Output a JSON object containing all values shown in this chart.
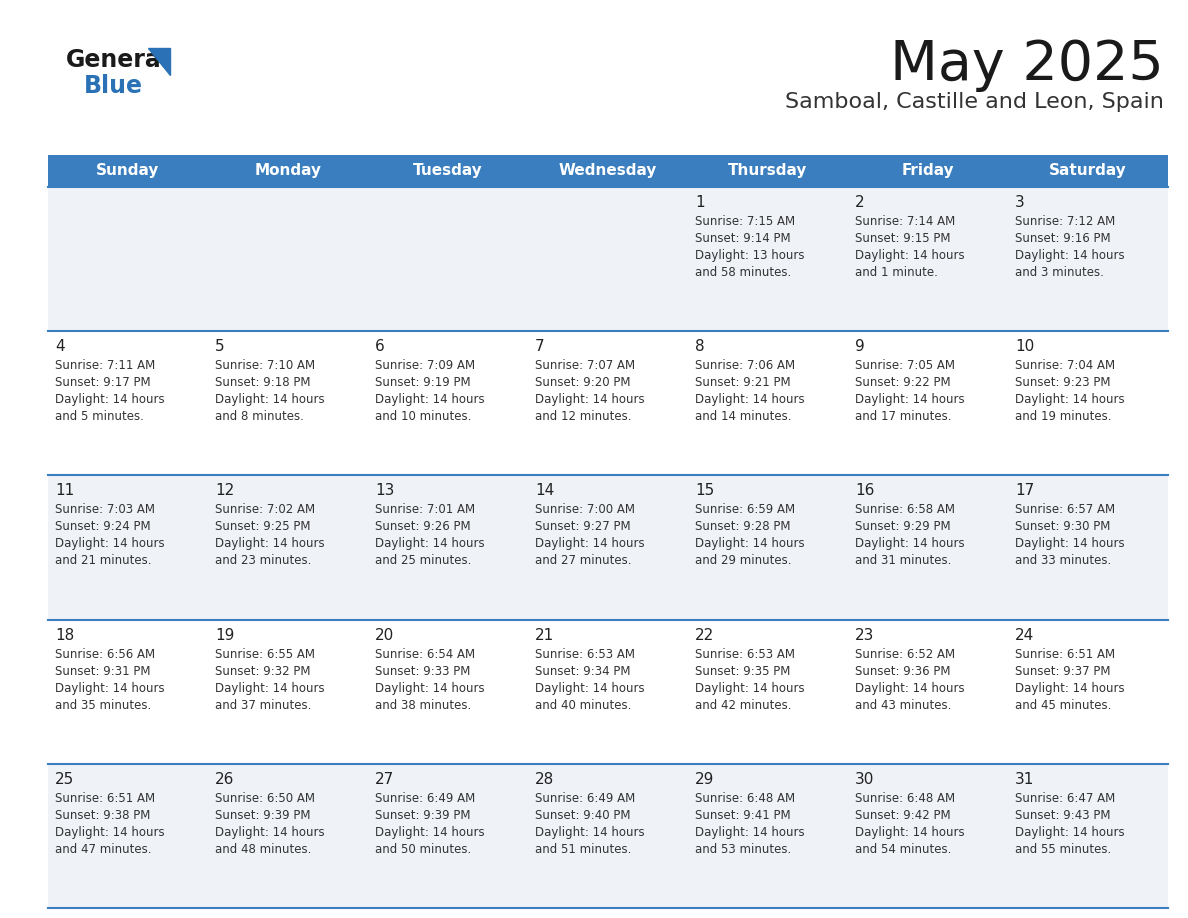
{
  "title": "May 2025",
  "subtitle": "Samboal, Castille and Leon, Spain",
  "days_of_week": [
    "Sunday",
    "Monday",
    "Tuesday",
    "Wednesday",
    "Thursday",
    "Friday",
    "Saturday"
  ],
  "header_bg": "#3a7ebf",
  "header_text": "#ffffff",
  "cell_bg_odd": "#eff3f8",
  "cell_bg_even": "#ffffff",
  "row_line_color": "#3a7ebf",
  "title_color": "#1a1a1a",
  "subtitle_color": "#333333",
  "day_num_color": "#222222",
  "cell_text_color": "#333333",
  "calendar_data": [
    [
      null,
      null,
      null,
      null,
      {
        "day": "1",
        "sunrise": "7:15 AM",
        "sunset": "9:14 PM",
        "daylight": "13 hours",
        "daylight2": "and 58 minutes."
      },
      {
        "day": "2",
        "sunrise": "7:14 AM",
        "sunset": "9:15 PM",
        "daylight": "14 hours",
        "daylight2": "and 1 minute."
      },
      {
        "day": "3",
        "sunrise": "7:12 AM",
        "sunset": "9:16 PM",
        "daylight": "14 hours",
        "daylight2": "and 3 minutes."
      }
    ],
    [
      {
        "day": "4",
        "sunrise": "7:11 AM",
        "sunset": "9:17 PM",
        "daylight": "14 hours",
        "daylight2": "and 5 minutes."
      },
      {
        "day": "5",
        "sunrise": "7:10 AM",
        "sunset": "9:18 PM",
        "daylight": "14 hours",
        "daylight2": "and 8 minutes."
      },
      {
        "day": "6",
        "sunrise": "7:09 AM",
        "sunset": "9:19 PM",
        "daylight": "14 hours",
        "daylight2": "and 10 minutes."
      },
      {
        "day": "7",
        "sunrise": "7:07 AM",
        "sunset": "9:20 PM",
        "daylight": "14 hours",
        "daylight2": "and 12 minutes."
      },
      {
        "day": "8",
        "sunrise": "7:06 AM",
        "sunset": "9:21 PM",
        "daylight": "14 hours",
        "daylight2": "and 14 minutes."
      },
      {
        "day": "9",
        "sunrise": "7:05 AM",
        "sunset": "9:22 PM",
        "daylight": "14 hours",
        "daylight2": "and 17 minutes."
      },
      {
        "day": "10",
        "sunrise": "7:04 AM",
        "sunset": "9:23 PM",
        "daylight": "14 hours",
        "daylight2": "and 19 minutes."
      }
    ],
    [
      {
        "day": "11",
        "sunrise": "7:03 AM",
        "sunset": "9:24 PM",
        "daylight": "14 hours",
        "daylight2": "and 21 minutes."
      },
      {
        "day": "12",
        "sunrise": "7:02 AM",
        "sunset": "9:25 PM",
        "daylight": "14 hours",
        "daylight2": "and 23 minutes."
      },
      {
        "day": "13",
        "sunrise": "7:01 AM",
        "sunset": "9:26 PM",
        "daylight": "14 hours",
        "daylight2": "and 25 minutes."
      },
      {
        "day": "14",
        "sunrise": "7:00 AM",
        "sunset": "9:27 PM",
        "daylight": "14 hours",
        "daylight2": "and 27 minutes."
      },
      {
        "day": "15",
        "sunrise": "6:59 AM",
        "sunset": "9:28 PM",
        "daylight": "14 hours",
        "daylight2": "and 29 minutes."
      },
      {
        "day": "16",
        "sunrise": "6:58 AM",
        "sunset": "9:29 PM",
        "daylight": "14 hours",
        "daylight2": "and 31 minutes."
      },
      {
        "day": "17",
        "sunrise": "6:57 AM",
        "sunset": "9:30 PM",
        "daylight": "14 hours",
        "daylight2": "and 33 minutes."
      }
    ],
    [
      {
        "day": "18",
        "sunrise": "6:56 AM",
        "sunset": "9:31 PM",
        "daylight": "14 hours",
        "daylight2": "and 35 minutes."
      },
      {
        "day": "19",
        "sunrise": "6:55 AM",
        "sunset": "9:32 PM",
        "daylight": "14 hours",
        "daylight2": "and 37 minutes."
      },
      {
        "day": "20",
        "sunrise": "6:54 AM",
        "sunset": "9:33 PM",
        "daylight": "14 hours",
        "daylight2": "and 38 minutes."
      },
      {
        "day": "21",
        "sunrise": "6:53 AM",
        "sunset": "9:34 PM",
        "daylight": "14 hours",
        "daylight2": "and 40 minutes."
      },
      {
        "day": "22",
        "sunrise": "6:53 AM",
        "sunset": "9:35 PM",
        "daylight": "14 hours",
        "daylight2": "and 42 minutes."
      },
      {
        "day": "23",
        "sunrise": "6:52 AM",
        "sunset": "9:36 PM",
        "daylight": "14 hours",
        "daylight2": "and 43 minutes."
      },
      {
        "day": "24",
        "sunrise": "6:51 AM",
        "sunset": "9:37 PM",
        "daylight": "14 hours",
        "daylight2": "and 45 minutes."
      }
    ],
    [
      {
        "day": "25",
        "sunrise": "6:51 AM",
        "sunset": "9:38 PM",
        "daylight": "14 hours",
        "daylight2": "and 47 minutes."
      },
      {
        "day": "26",
        "sunrise": "6:50 AM",
        "sunset": "9:39 PM",
        "daylight": "14 hours",
        "daylight2": "and 48 minutes."
      },
      {
        "day": "27",
        "sunrise": "6:49 AM",
        "sunset": "9:39 PM",
        "daylight": "14 hours",
        "daylight2": "and 50 minutes."
      },
      {
        "day": "28",
        "sunrise": "6:49 AM",
        "sunset": "9:40 PM",
        "daylight": "14 hours",
        "daylight2": "and 51 minutes."
      },
      {
        "day": "29",
        "sunrise": "6:48 AM",
        "sunset": "9:41 PM",
        "daylight": "14 hours",
        "daylight2": "and 53 minutes."
      },
      {
        "day": "30",
        "sunrise": "6:48 AM",
        "sunset": "9:42 PM",
        "daylight": "14 hours",
        "daylight2": "and 54 minutes."
      },
      {
        "day": "31",
        "sunrise": "6:47 AM",
        "sunset": "9:43 PM",
        "daylight": "14 hours",
        "daylight2": "and 55 minutes."
      }
    ]
  ]
}
